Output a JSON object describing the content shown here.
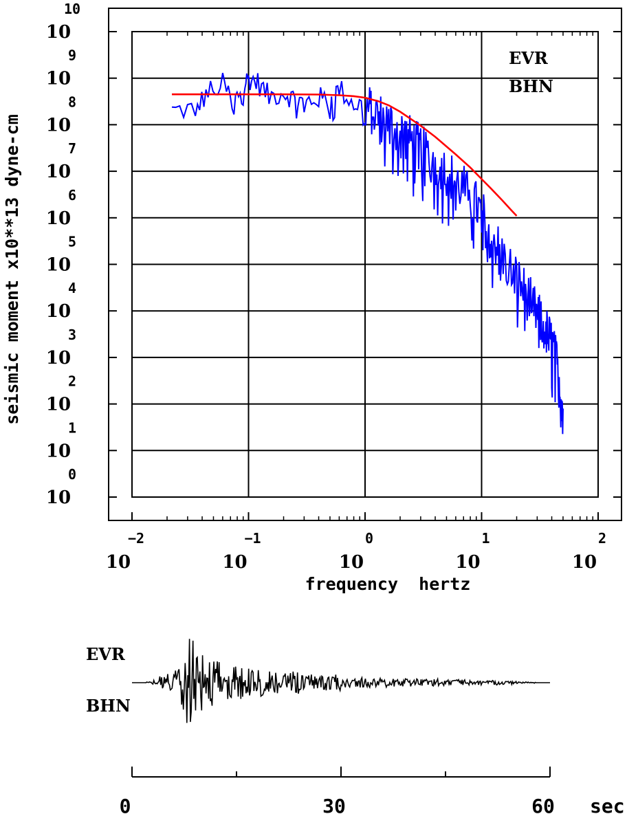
{
  "chart_data": [
    {
      "type": "line",
      "ylabel": "seismic moment x10**13 dyne-cm",
      "xlabel": "frequency  hertz",
      "x_scale": "log",
      "y_scale": "log",
      "xlim": [
        0.01,
        100
      ],
      "ylim": [
        1,
        10000000000
      ],
      "x_tick_base": "10",
      "x_tick_exponents": [
        "−2",
        "−1",
        "0",
        "1",
        "2"
      ],
      "y_tick_base": "10",
      "y_tick_exponents": [
        "0",
        "1",
        "2",
        "3",
        "4",
        "5",
        "6",
        "7",
        "8",
        "9",
        "10"
      ],
      "grid": true,
      "legend": {
        "station": "EVR",
        "channel": "BHN"
      },
      "series": [
        {
          "color": "#0000ff",
          "x": [
            0.022,
            0.035,
            0.045,
            0.06,
            0.075,
            0.09,
            0.1,
            0.12,
            0.15,
            0.2,
            0.25,
            0.3,
            0.4,
            0.5,
            0.6,
            0.8,
            1.0,
            1.2,
            1.5,
            2.0,
            2.5,
            3.0,
            4.0,
            5.0,
            6.0,
            8.0,
            10.0,
            12.0,
            15.0,
            20.0,
            25.0,
            30.0,
            35.0,
            40.0,
            45.0,
            50.0
          ],
          "y": [
            200000000,
            220000000,
            500000000,
            750000000,
            300000000,
            700000000,
            1000000000,
            800000000,
            400000000,
            500000000,
            350000000,
            300000000,
            380000000,
            320000000,
            600000000,
            280000000,
            250000000,
            180000000,
            120000000,
            75000000,
            45000000,
            30000000,
            16000000,
            10000000,
            6000000,
            3000000,
            1200000,
            500000,
            150000,
            50000,
            20000,
            8000,
            4000,
            2000,
            600,
            80
          ]
        },
        {
          "color": "#ff0000",
          "x": [
            0.022,
            0.05,
            0.1,
            0.2,
            0.4,
            0.6,
            0.8,
            1.0,
            1.3,
            1.6,
            2.0,
            2.5,
            3.0,
            4.0,
            5.0,
            6.0,
            8.0,
            10.0,
            12.0,
            15.0,
            18.0,
            20.0
          ],
          "y": [
            450000000,
            450000000,
            450000000,
            450000000,
            445000000,
            430000000,
            410000000,
            380000000,
            320000000,
            260000000,
            190000000,
            130000000,
            95000000,
            55000000,
            34000000,
            23000000,
            12000000,
            6800000,
            4300000,
            2400000,
            1450000,
            1100000
          ]
        }
      ]
    },
    {
      "type": "line",
      "legend": {
        "station": "EVR",
        "channel": "BHN"
      },
      "xlim": [
        0,
        60
      ],
      "x_ticks": [
        "0",
        "30",
        "60"
      ],
      "x_unit": "sec",
      "trace_start_sec": 0,
      "trace_end_sec": 60,
      "samples_per_sec": 8,
      "amplitude": [
        0.0,
        0.0,
        0.02,
        0.05,
        0.15,
        0.3,
        0.45,
        0.9,
        1.0,
        0.85,
        0.65,
        0.55,
        0.5,
        0.45,
        0.4,
        0.35,
        0.3,
        0.32,
        0.28,
        0.25,
        0.3,
        0.22,
        0.2,
        0.24,
        0.18,
        0.2,
        0.15,
        0.16,
        0.14,
        0.18,
        0.12,
        0.12,
        0.1,
        0.11,
        0.1,
        0.09,
        0.1,
        0.08,
        0.09,
        0.08,
        0.08,
        0.07,
        0.07,
        0.08,
        0.06,
        0.06,
        0.07,
        0.06,
        0.05,
        0.06,
        0.05,
        0.05,
        0.05,
        0.04,
        0.04,
        0.03,
        0.02,
        0.01,
        0.0,
        0.0,
        0.0
      ]
    }
  ]
}
